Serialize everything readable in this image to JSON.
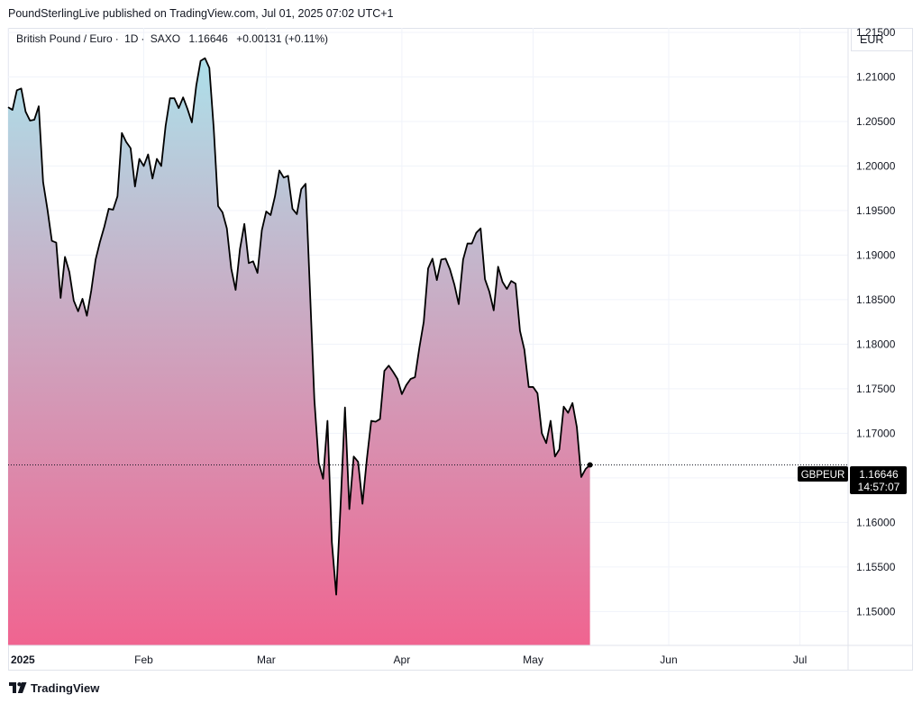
{
  "header": {
    "publish_line": "PoundSterlingLive published on TradingView.com, Jul 01, 2025 07:02 UTC+1"
  },
  "legend": {
    "instrument": "British Pound / Euro",
    "interval": "1D",
    "exchange": "SAXO",
    "last_price": "1.16646",
    "change": "+0.00131 (+0.11%)"
  },
  "currency": "EUR",
  "price_label": {
    "symbol": "GBPEUR",
    "price": "1.16646",
    "countdown": "14:57:07"
  },
  "footer": {
    "brand": "TradingView"
  },
  "colors": {
    "line": "#000000",
    "gradient_top": "#ade0ea",
    "gradient_bottom": "#f06490",
    "label_bg": "#000000",
    "grid": "#f0f3fa"
  },
  "chart_data": {
    "type": "area",
    "title": "British Pound / Euro · 1D · SAXO",
    "xlabel": "",
    "ylabel": "EUR",
    "ylim": [
      1.1462,
      1.2155
    ],
    "yticks": [
      1.215,
      1.21,
      1.205,
      1.2,
      1.195,
      1.19,
      1.185,
      1.18,
      1.175,
      1.17,
      1.165,
      1.16,
      1.155,
      1.15
    ],
    "ytick_labels": [
      "1.21500",
      "1.21000",
      "1.20500",
      "1.20000",
      "1.19500",
      "1.19000",
      "1.18500",
      "1.18000",
      "1.17500",
      "1.17000",
      "1.16500",
      "1.16000",
      "1.15500",
      "1.15000"
    ],
    "xrange_days": [
      0,
      192
    ],
    "xticks": [
      {
        "label": "2025",
        "day": 0,
        "bold": true
      },
      {
        "label": "Feb",
        "day": 31
      },
      {
        "label": "Mar",
        "day": 59
      },
      {
        "label": "Apr",
        "day": 90
      },
      {
        "label": "May",
        "day": 120
      },
      {
        "label": "Jun",
        "day": 151
      },
      {
        "label": "Jul",
        "day": 181
      }
    ],
    "current_value": 1.16646,
    "series": [
      {
        "name": "GBPEUR",
        "points": [
          [
            0,
            1.2066
          ],
          [
            1,
            1.2063
          ],
          [
            2,
            1.2085
          ],
          [
            3,
            1.2087
          ],
          [
            4,
            1.2061
          ],
          [
            5,
            1.2051
          ],
          [
            6,
            1.2052
          ],
          [
            7,
            1.2067
          ],
          [
            8,
            1.1982
          ],
          [
            9,
            1.1951
          ],
          [
            10,
            1.1916
          ],
          [
            11,
            1.1914
          ],
          [
            12,
            1.1852
          ],
          [
            13,
            1.1898
          ],
          [
            14,
            1.1881
          ],
          [
            15,
            1.1849
          ],
          [
            16,
            1.1837
          ],
          [
            17,
            1.1851
          ],
          [
            18,
            1.1832
          ],
          [
            19,
            1.186
          ],
          [
            20,
            1.1895
          ],
          [
            21,
            1.1915
          ],
          [
            22,
            1.1932
          ],
          [
            23,
            1.1952
          ],
          [
            24,
            1.1951
          ],
          [
            25,
            1.1966
          ],
          [
            26,
            1.2037
          ],
          [
            27,
            1.2027
          ],
          [
            28,
            1.202
          ],
          [
            29,
            1.1977
          ],
          [
            30,
            1.2008
          ],
          [
            31,
            1.2
          ],
          [
            32,
            1.2013
          ],
          [
            33,
            1.1986
          ],
          [
            34,
            1.2008
          ],
          [
            35,
            1.2
          ],
          [
            36,
            1.2045
          ],
          [
            37,
            1.2076
          ],
          [
            38,
            1.2076
          ],
          [
            39,
            1.2065
          ],
          [
            40,
            1.2077
          ],
          [
            41,
            1.2064
          ],
          [
            42,
            1.2049
          ],
          [
            43,
            1.209
          ],
          [
            44,
            1.2118
          ],
          [
            45,
            1.2121
          ],
          [
            46,
            1.211
          ],
          [
            47,
            1.2042
          ],
          [
            48,
            1.1955
          ],
          [
            49,
            1.1948
          ],
          [
            50,
            1.193
          ],
          [
            51,
            1.1885
          ],
          [
            52,
            1.1861
          ],
          [
            53,
            1.1907
          ],
          [
            54,
            1.1935
          ],
          [
            55,
            1.1891
          ],
          [
            56,
            1.1893
          ],
          [
            57,
            1.188
          ],
          [
            58,
            1.1928
          ],
          [
            59,
            1.1949
          ],
          [
            60,
            1.1945
          ],
          [
            61,
            1.1966
          ],
          [
            62,
            1.1995
          ],
          [
            63,
            1.1987
          ],
          [
            64,
            1.1989
          ],
          [
            65,
            1.1952
          ],
          [
            66,
            1.1946
          ],
          [
            67,
            1.1974
          ],
          [
            68,
            1.198
          ],
          [
            69,
            1.186
          ],
          [
            70,
            1.1738
          ],
          [
            71,
            1.1667
          ],
          [
            72,
            1.1649
          ],
          [
            73,
            1.1714
          ],
          [
            74,
            1.1578
          ],
          [
            75,
            1.1519
          ],
          [
            76,
            1.162
          ],
          [
            77,
            1.1729
          ],
          [
            78,
            1.1615
          ],
          [
            79,
            1.1674
          ],
          [
            80,
            1.1668
          ],
          [
            81,
            1.1621
          ],
          [
            82,
            1.1671
          ],
          [
            83,
            1.1714
          ],
          [
            84,
            1.1713
          ],
          [
            85,
            1.1716
          ],
          [
            86,
            1.177
          ],
          [
            87,
            1.1776
          ],
          [
            88,
            1.1769
          ],
          [
            89,
            1.1761
          ],
          [
            90,
            1.1744
          ],
          [
            91,
            1.1754
          ],
          [
            92,
            1.1761
          ],
          [
            93,
            1.1763
          ],
          [
            94,
            1.1796
          ],
          [
            95,
            1.1825
          ],
          [
            96,
            1.1885
          ],
          [
            97,
            1.1896
          ],
          [
            98,
            1.1872
          ],
          [
            99,
            1.1895
          ],
          [
            100,
            1.1896
          ],
          [
            101,
            1.1884
          ],
          [
            102,
            1.1867
          ],
          [
            103,
            1.1845
          ],
          [
            104,
            1.1895
          ],
          [
            105,
            1.1913
          ],
          [
            106,
            1.1913
          ],
          [
            107,
            1.1925
          ],
          [
            108,
            1.193
          ],
          [
            109,
            1.1873
          ],
          [
            110,
            1.1859
          ],
          [
            111,
            1.1838
          ],
          [
            112,
            1.1887
          ],
          [
            113,
            1.187
          ],
          [
            114,
            1.1862
          ],
          [
            115,
            1.1871
          ],
          [
            116,
            1.1868
          ],
          [
            117,
            1.1815
          ],
          [
            118,
            1.1794
          ],
          [
            119,
            1.1752
          ],
          [
            120,
            1.1752
          ],
          [
            121,
            1.1745
          ],
          [
            122,
            1.17
          ],
          [
            123,
            1.1689
          ],
          [
            124,
            1.1714
          ],
          [
            125,
            1.1674
          ],
          [
            126,
            1.1682
          ],
          [
            127,
            1.173
          ],
          [
            128,
            1.1723
          ],
          [
            129,
            1.1734
          ],
          [
            130,
            1.1707
          ],
          [
            131,
            1.1651
          ],
          [
            132,
            1.166
          ],
          [
            133,
            1.16646
          ]
        ]
      }
    ]
  }
}
